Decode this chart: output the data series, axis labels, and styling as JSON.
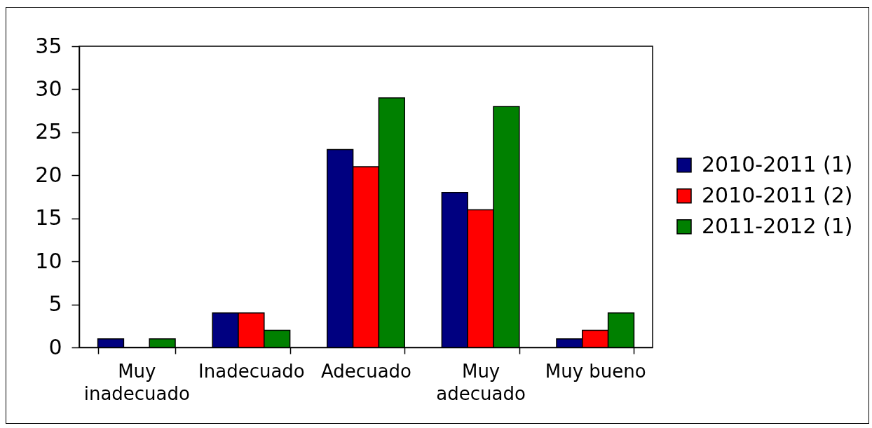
{
  "chart_data": {
    "type": "bar",
    "categories": [
      "Muy inadecuado",
      "Inadecuado",
      "Adecuado",
      "Muy adecuado",
      "Muy bueno"
    ],
    "series": [
      {
        "name": "2010-2011 (1)",
        "color": "#000080",
        "values": [
          1,
          4,
          23,
          18,
          1
        ]
      },
      {
        "name": "2010-2011 (2)",
        "color": "#ff0000",
        "values": [
          0,
          4,
          21,
          16,
          2
        ]
      },
      {
        "name": "2011-2012 (1)",
        "color": "#008000",
        "values": [
          1,
          2,
          29,
          28,
          4
        ]
      }
    ],
    "ylim": [
      0,
      35
    ],
    "yticks": [
      0,
      5,
      10,
      15,
      20,
      25,
      30,
      35
    ],
    "grid": false,
    "legend": "right"
  }
}
